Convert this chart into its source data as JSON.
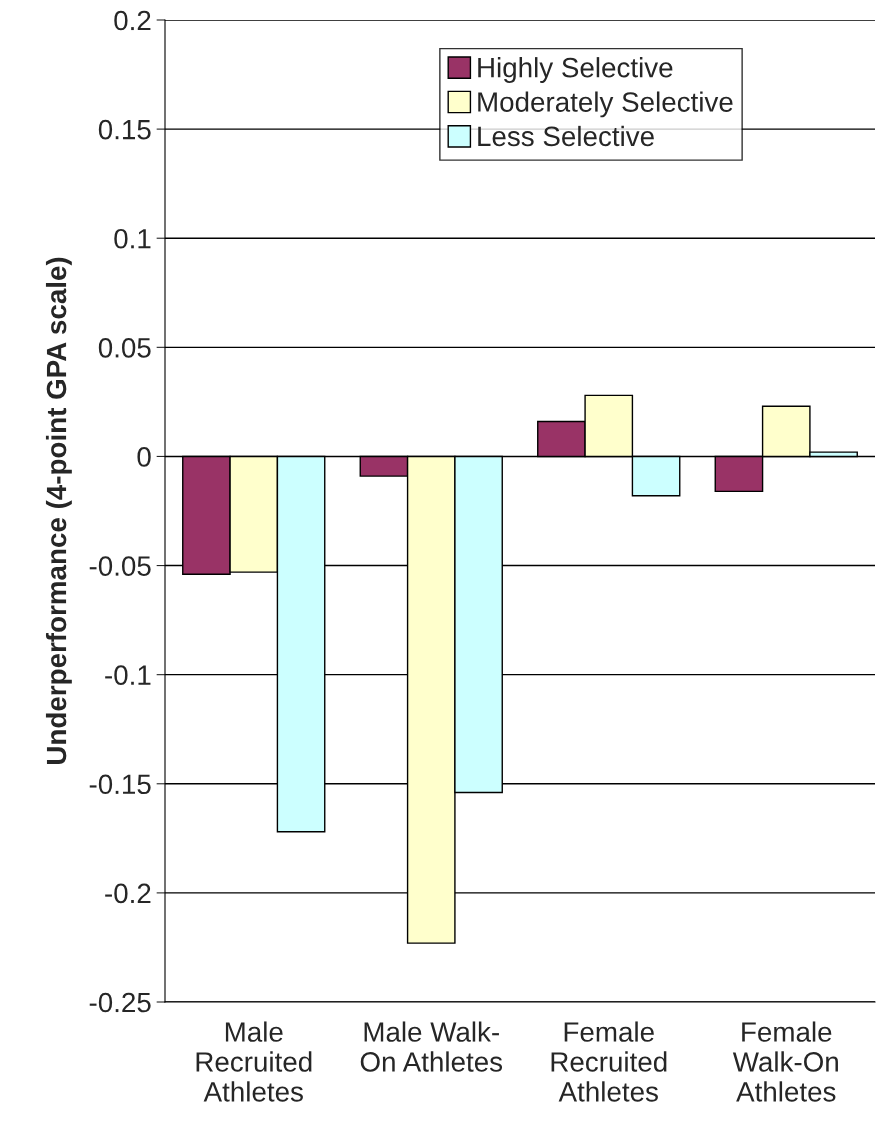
{
  "chart_data": {
    "type": "bar",
    "ylabel": "Underperformance (4-point GPA scale)",
    "categories": [
      "Male\nRecruited\nAthletes",
      "Male Walk-\nOn Athletes",
      "Female\nRecruited\nAthletes",
      "Female\nWalk-On\nAthletes"
    ],
    "series": [
      {
        "name": "Highly Selective",
        "color": "#993366",
        "values": [
          -0.054,
          -0.009,
          0.016,
          -0.016
        ]
      },
      {
        "name": "Moderately Selective",
        "color": "#ffffcc",
        "values": [
          -0.053,
          -0.223,
          0.028,
          0.023
        ]
      },
      {
        "name": "Less Selective",
        "color": "#ccffff",
        "values": [
          -0.172,
          -0.154,
          -0.018,
          0.002
        ]
      }
    ],
    "ylim": [
      -0.25,
      0.2
    ],
    "yticks": [
      -0.25,
      -0.2,
      -0.15,
      -0.1,
      -0.05,
      0,
      0.05,
      0.1,
      0.15,
      0.2
    ],
    "grid": "y",
    "legend": "top"
  }
}
